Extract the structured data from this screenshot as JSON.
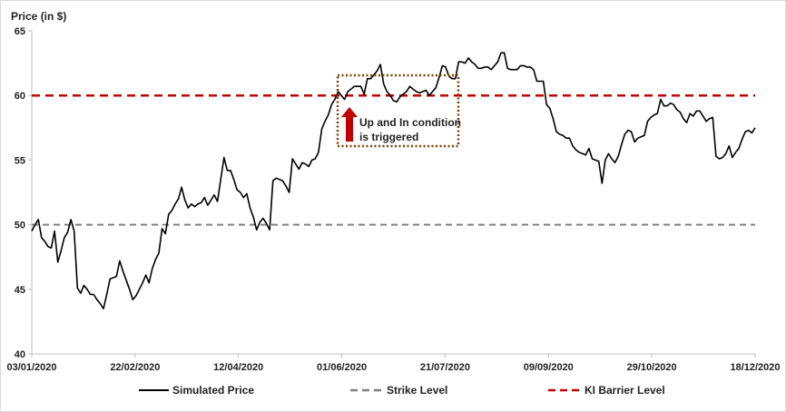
{
  "chart_data": {
    "type": "line",
    "ylabel": "Price (in $)",
    "xlabel": "",
    "ylim": [
      40,
      65
    ],
    "yticks": [
      40,
      45,
      50,
      55,
      60,
      65
    ],
    "grid": false,
    "legend_position": "bottom",
    "xticks": [
      "03/01/2020",
      "22/02/2020",
      "12/04/2020",
      "01/06/2020",
      "21/07/2020",
      "09/09/2020",
      "29/10/2020",
      "18/12/2020"
    ],
    "series": [
      {
        "name": "Simulated Price",
        "color": "#000000",
        "style": "solid",
        "values": [
          49.5,
          50.0,
          50.4,
          49.0,
          48.7,
          48.3,
          48.2,
          49.5,
          47.1,
          48.0,
          49.0,
          49.4,
          50.4,
          49.5,
          45.1,
          44.7,
          45.3,
          45.0,
          44.6,
          44.6,
          44.2,
          43.9,
          43.5,
          44.6,
          45.8,
          45.9,
          46.0,
          47.2,
          46.4,
          45.7,
          45.0,
          44.2,
          44.5,
          45.0,
          45.5,
          46.1,
          45.5,
          46.6,
          47.3,
          47.8,
          49.7,
          49.3,
          50.8,
          51.1,
          51.6,
          52.0,
          52.9,
          51.9,
          51.3,
          51.6,
          51.4,
          51.6,
          51.7,
          52.1,
          51.5,
          51.9,
          52.3,
          51.8,
          53.5,
          55.2,
          54.2,
          54.2,
          53.5,
          52.7,
          52.5,
          52.1,
          52.4,
          51.3,
          50.6,
          49.6,
          50.2,
          50.5,
          50.1,
          49.6,
          53.4,
          53.6,
          53.5,
          53.4,
          53.0,
          52.5,
          55.1,
          54.7,
          54.3,
          54.8,
          54.7,
          54.5,
          55.0,
          55.1,
          55.6,
          57.4,
          58.0,
          58.5,
          59.3,
          59.7,
          60.3,
          60.0,
          59.7,
          60.3,
          60.5,
          60.7,
          60.7,
          60.7,
          60.1,
          61.3,
          61.3,
          61.6,
          61.9,
          62.4,
          60.9,
          60.3,
          60.0,
          59.6,
          59.5,
          59.9,
          60.1,
          60.3,
          60.7,
          60.5,
          60.3,
          60.2,
          60.3,
          60.4,
          60.0,
          60.3,
          60.6,
          61.4,
          62.3,
          62.2,
          61.5,
          61.3,
          61.3,
          62.6,
          62.6,
          62.5,
          62.9,
          62.6,
          62.4,
          62.1,
          62.1,
          62.2,
          62.2,
          62.0,
          62.3,
          62.6,
          63.3,
          63.3,
          62.1,
          62.0,
          62.0,
          62.0,
          62.3,
          62.3,
          62.2,
          62.2,
          62.0,
          61.1,
          61.1,
          61.1,
          59.3,
          59.0,
          58.2,
          57.2,
          57.0,
          56.9,
          56.7,
          56.7,
          56.1,
          55.8,
          55.6,
          55.5,
          55.4,
          55.9,
          55.1,
          55.0,
          54.9,
          53.2,
          55.0,
          55.5,
          55.1,
          54.8,
          55.3,
          56.2,
          57.0,
          57.3,
          57.2,
          56.4,
          56.7,
          56.8,
          56.9,
          58.0,
          58.3,
          58.5,
          58.6,
          59.7,
          59.2,
          59.2,
          59.4,
          59.3,
          58.9,
          58.7,
          58.2,
          57.9,
          58.6,
          58.4,
          58.8,
          58.8,
          58.4,
          58.0,
          58.2,
          58.3,
          55.3,
          55.1,
          55.2,
          55.5,
          56.1,
          55.2,
          55.6,
          55.9,
          56.6,
          57.2,
          57.3,
          57.1,
          57.5
        ]
      },
      {
        "name": "Strike Level",
        "color": "#808080",
        "style": "dashed",
        "values": [
          50,
          50
        ]
      },
      {
        "name": "KI Barrier Level",
        "color": "#c00000",
        "style": "dashed",
        "values": [
          60,
          60
        ]
      }
    ],
    "annotations": [
      {
        "text_lines": [
          "Up and In condition",
          "is triggered"
        ],
        "color": "#000000",
        "box_color": "#7f3f00",
        "arrow_color": "#c00000"
      }
    ]
  }
}
